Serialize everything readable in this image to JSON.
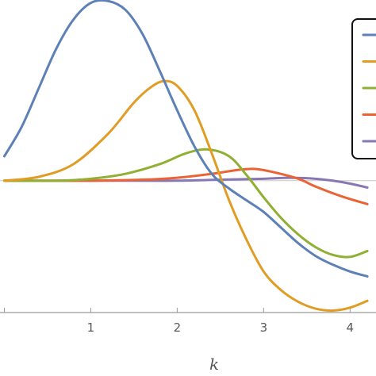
{
  "chart_data": {
    "type": "line",
    "xlabel": "k",
    "ylabel": "",
    "title": "",
    "xlim": [
      -0.05,
      4.3
    ],
    "ylim": [
      -1.35,
      1.85
    ],
    "x_ticks": [
      0,
      1,
      2,
      3,
      4
    ],
    "x_tick_labels": [
      "",
      "1",
      "2",
      "3",
      "4"
    ],
    "grid": false,
    "legend_position": "top-right",
    "series": [
      {
        "color": "#5e81b5",
        "points": [
          [
            0,
            0.25
          ],
          [
            0.2,
            0.55
          ],
          [
            0.4,
            0.95
          ],
          [
            0.6,
            1.35
          ],
          [
            0.8,
            1.65
          ],
          [
            1.0,
            1.82
          ],
          [
            1.2,
            1.84
          ],
          [
            1.4,
            1.75
          ],
          [
            1.6,
            1.5
          ],
          [
            1.8,
            1.12
          ],
          [
            2.0,
            0.72
          ],
          [
            2.2,
            0.35
          ],
          [
            2.4,
            0.07
          ],
          [
            2.6,
            -0.08
          ],
          [
            2.8,
            -0.2
          ],
          [
            3.0,
            -0.32
          ],
          [
            3.2,
            -0.48
          ],
          [
            3.4,
            -0.64
          ],
          [
            3.6,
            -0.77
          ],
          [
            3.8,
            -0.86
          ],
          [
            4.0,
            -0.93
          ],
          [
            4.2,
            -0.98
          ]
        ]
      },
      {
        "color": "#e19c24",
        "points": [
          [
            0,
            0
          ],
          [
            0.4,
            0.04
          ],
          [
            0.8,
            0.17
          ],
          [
            1.2,
            0.48
          ],
          [
            1.5,
            0.8
          ],
          [
            1.7,
            0.96
          ],
          [
            1.85,
            1.02
          ],
          [
            2.0,
            0.97
          ],
          [
            2.2,
            0.72
          ],
          [
            2.4,
            0.28
          ],
          [
            2.6,
            -0.2
          ],
          [
            2.8,
            -0.6
          ],
          [
            3.0,
            -0.93
          ],
          [
            3.2,
            -1.12
          ],
          [
            3.4,
            -1.24
          ],
          [
            3.6,
            -1.31
          ],
          [
            3.8,
            -1.33
          ],
          [
            4.0,
            -1.3
          ],
          [
            4.2,
            -1.23
          ]
        ]
      },
      {
        "color": "#8fb032",
        "points": [
          [
            0,
            0
          ],
          [
            0.6,
            0
          ],
          [
            1.0,
            0.02
          ],
          [
            1.4,
            0.07
          ],
          [
            1.8,
            0.17
          ],
          [
            2.1,
            0.28
          ],
          [
            2.35,
            0.32
          ],
          [
            2.6,
            0.25
          ],
          [
            2.8,
            0.06
          ],
          [
            3.0,
            -0.17
          ],
          [
            3.2,
            -0.38
          ],
          [
            3.4,
            -0.55
          ],
          [
            3.6,
            -0.68
          ],
          [
            3.8,
            -0.76
          ],
          [
            4.0,
            -0.78
          ],
          [
            4.2,
            -0.72
          ]
        ]
      },
      {
        "color": "#eb6235",
        "points": [
          [
            0,
            0
          ],
          [
            1.0,
            0
          ],
          [
            1.6,
            0.01
          ],
          [
            2.0,
            0.03
          ],
          [
            2.4,
            0.07
          ],
          [
            2.7,
            0.11
          ],
          [
            2.9,
            0.12
          ],
          [
            3.1,
            0.09
          ],
          [
            3.4,
            0.02
          ],
          [
            3.6,
            -0.06
          ],
          [
            3.9,
            -0.16
          ],
          [
            4.2,
            -0.24
          ]
        ]
      },
      {
        "color": "#8778b3",
        "points": [
          [
            0,
            0
          ],
          [
            1.5,
            0
          ],
          [
            2.0,
            0
          ],
          [
            2.5,
            0.01
          ],
          [
            3.0,
            0.02
          ],
          [
            3.3,
            0.03
          ],
          [
            3.6,
            0.02
          ],
          [
            3.8,
            0
          ],
          [
            4.0,
            -0.03
          ],
          [
            4.2,
            -0.07
          ]
        ]
      }
    ]
  }
}
